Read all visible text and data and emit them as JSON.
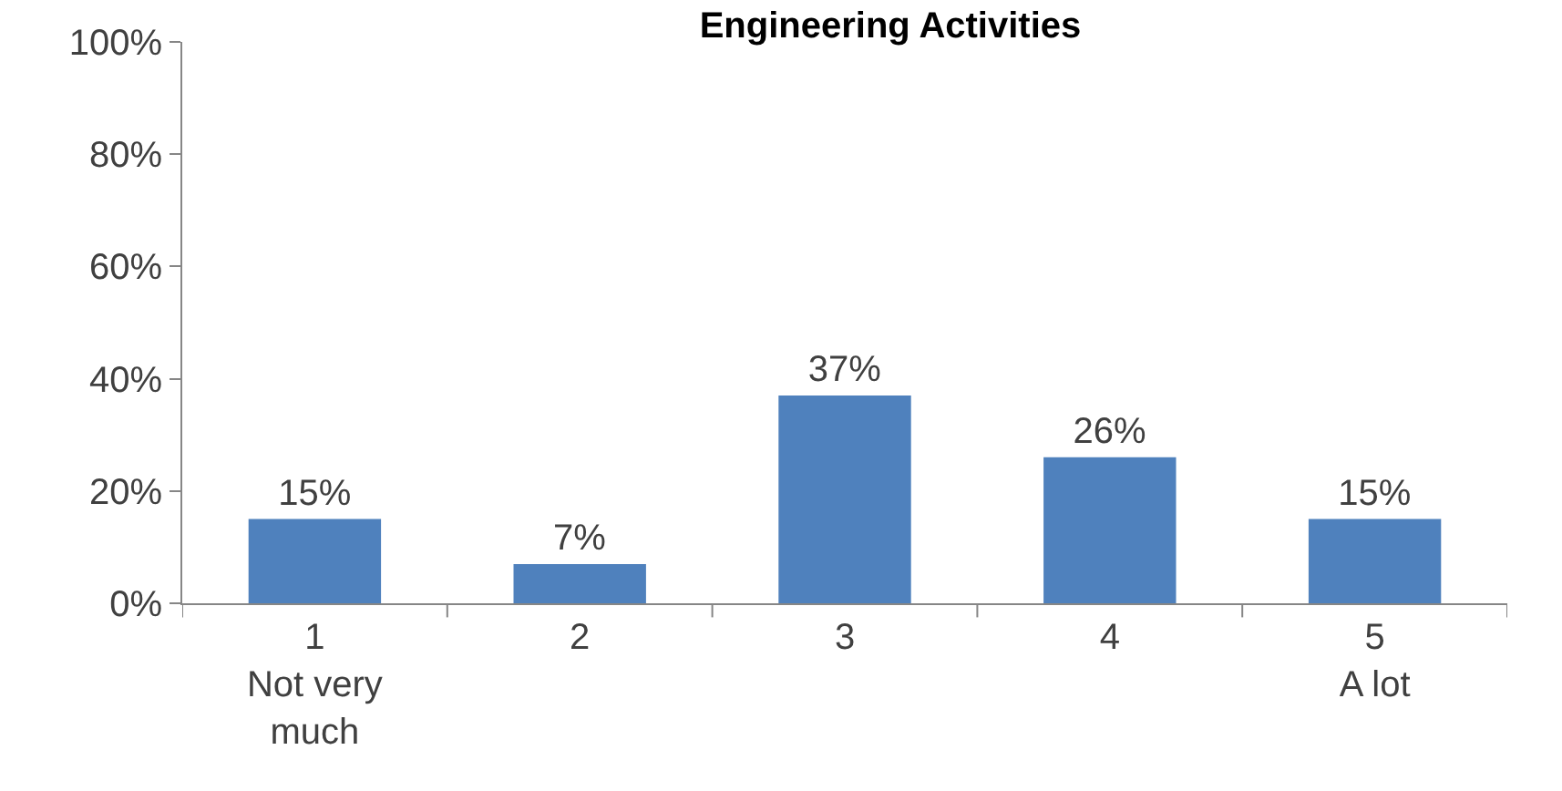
{
  "chart_data": {
    "type": "bar",
    "title": "Engineering Activities",
    "categories": [
      "1\nNot very\nmuch",
      "2",
      "3",
      "4",
      "5\nA lot"
    ],
    "values": [
      15,
      7,
      37,
      26,
      15
    ],
    "value_labels": [
      "15%",
      "7%",
      "37%",
      "26%",
      "15%"
    ],
    "color": "#4f81bd",
    "ylim": [
      0,
      100
    ],
    "yticks": [
      {
        "value": 0,
        "label": "0%"
      },
      {
        "value": 20,
        "label": "20%"
      },
      {
        "value": 40,
        "label": "40%"
      },
      {
        "value": 60,
        "label": "60%"
      },
      {
        "value": 80,
        "label": "80%"
      },
      {
        "value": 100,
        "label": "100%"
      }
    ]
  }
}
